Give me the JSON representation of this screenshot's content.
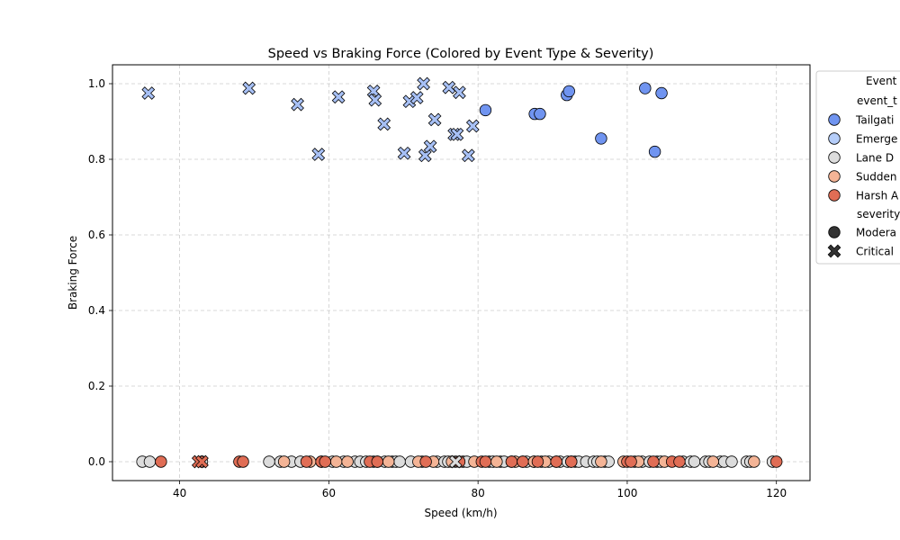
{
  "chart_data": {
    "type": "scatter",
    "title": "Speed vs Braking Force (Colored by Event Type & Severity)",
    "xlabel": "Speed (km/h)",
    "ylabel": "Braking Force",
    "xlim": [
      31,
      124.5
    ],
    "ylim": [
      -0.05,
      1.05
    ],
    "xticks": [
      40,
      60,
      80,
      100,
      120
    ],
    "yticks": [
      0.0,
      0.2,
      0.4,
      0.6,
      0.8,
      1.0
    ],
    "xtick_labels": [
      "40",
      "60",
      "80",
      "100",
      "120"
    ],
    "ytick_labels": [
      "0.0",
      "0.2",
      "0.4",
      "0.6",
      "0.8",
      "1.0"
    ],
    "grid": true,
    "legend": {
      "placement": "upper-right-outside",
      "title": "Event",
      "hue_title": "event_t",
      "style_title": "severity",
      "event_entries": [
        {
          "label": "Tailgati",
          "color": "#7094f0"
        },
        {
          "label": "Emerge",
          "color": "#b5cdf9"
        },
        {
          "label": "Lane D",
          "color": "#dcdcdc"
        },
        {
          "label": "Sudden",
          "color": "#f4b496"
        },
        {
          "label": "Harsh A",
          "color": "#e06d55"
        }
      ],
      "severity_entries": [
        {
          "label": "Modera",
          "marker": "circle"
        },
        {
          "label": "Critical",
          "marker": "x"
        }
      ]
    },
    "series": [
      {
        "event": "Tailgating",
        "severity": "Moderate",
        "color": "#7094f0",
        "marker": "circle",
        "x": [
          81,
          87.6,
          88.3,
          91.9,
          92.2,
          96.5,
          102.4,
          103.7,
          104.6
        ],
        "y": [
          0.93,
          0.92,
          0.92,
          0.97,
          0.98,
          0.855,
          0.988,
          0.82,
          0.975
        ]
      },
      {
        "event": "Emergency",
        "severity": "Critical",
        "color": "#a7c0f5",
        "marker": "x",
        "x": [
          35.8,
          49.3,
          55.8,
          58.6,
          61.3,
          66,
          66.2,
          67.4,
          70.1,
          70.8,
          71.8,
          72.7,
          72.9,
          73.6,
          74.2,
          76.1,
          76.8,
          77.2,
          77.5,
          78.7,
          79.3
        ],
        "y": [
          0.975,
          0.988,
          0.945,
          0.813,
          0.965,
          0.98,
          0.957,
          0.893,
          0.816,
          0.953,
          0.963,
          1.0,
          0.81,
          0.834,
          0.905,
          0.99,
          0.866,
          0.866,
          0.977,
          0.81,
          0.888
        ]
      },
      {
        "event": "Lane Departure",
        "severity": "Moderate",
        "color": "#dcdcdc",
        "marker": "circle",
        "x": [
          35,
          36,
          43,
          52,
          53.5,
          55,
          56.2,
          59,
          60.5,
          62,
          63.5,
          64.2,
          65,
          66,
          67.5,
          68.5,
          69,
          69.5,
          71,
          72.5,
          74.5,
          75.5,
          76,
          77,
          78,
          78.5,
          81.5,
          82,
          83,
          83.5,
          84.5,
          86,
          86.5,
          87.5,
          88.5,
          89.5,
          90.5,
          91,
          92,
          93,
          93.5,
          94.5,
          95.5,
          96,
          97,
          97.5,
          101,
          102,
          103,
          104,
          104.5,
          107.5,
          108.5,
          109,
          110.5,
          111,
          112.5,
          113,
          114,
          116,
          116.5,
          119.5
        ],
        "y": [
          0,
          0,
          0,
          0,
          0,
          0,
          0,
          0,
          0,
          0,
          0,
          0,
          0,
          0,
          0,
          0,
          0,
          0,
          0,
          0,
          0,
          0,
          0,
          0,
          0,
          0,
          0,
          0,
          0,
          0,
          0,
          0,
          0,
          0,
          0,
          0,
          0,
          0,
          0,
          0,
          0,
          0,
          0,
          0,
          0,
          0,
          0,
          0,
          0,
          0,
          0,
          0,
          0,
          0,
          0,
          0,
          0,
          0,
          0,
          0,
          0,
          0
        ]
      },
      {
        "event": "Sudden Braking",
        "severity": "Moderate",
        "color": "#f4b496",
        "marker": "circle",
        "x": [
          54,
          57.5,
          61,
          62.5,
          66.5,
          68,
          72,
          74,
          76.5,
          79.5,
          82.5,
          85,
          87.5,
          89,
          92.5,
          96.5,
          99.5,
          101.5,
          105,
          111.5,
          117
        ],
        "y": [
          0,
          0,
          0,
          0,
          0,
          0,
          0,
          0,
          0,
          0,
          0,
          0,
          0,
          0,
          0,
          0,
          0,
          0,
          0,
          0,
          0
        ]
      },
      {
        "event": "Harsh Acceleration",
        "severity": "Moderate",
        "color": "#e06d55",
        "marker": "circle",
        "x": [
          37.5,
          48,
          48.5,
          57,
          59,
          59.5,
          65.5,
          66.5,
          73,
          77.5,
          80.5,
          81,
          84.5,
          86,
          88,
          90.5,
          92.5,
          100,
          100.5,
          103.5,
          106,
          107,
          120
        ],
        "y": [
          0,
          0,
          0,
          0,
          0,
          0,
          0,
          0,
          0,
          0,
          0,
          0,
          0,
          0,
          0,
          0,
          0,
          0,
          0,
          0,
          0,
          0,
          0
        ]
      },
      {
        "event": "Harsh Acceleration",
        "severity": "Critical",
        "color": "#e06d55",
        "marker": "x",
        "x": [
          42.5,
          43
        ],
        "y": [
          0,
          0
        ]
      },
      {
        "event": "Lane Departure",
        "severity": "Critical",
        "color": "#dcdcdc",
        "marker": "x",
        "x": [
          77
        ],
        "y": [
          0
        ]
      }
    ]
  }
}
